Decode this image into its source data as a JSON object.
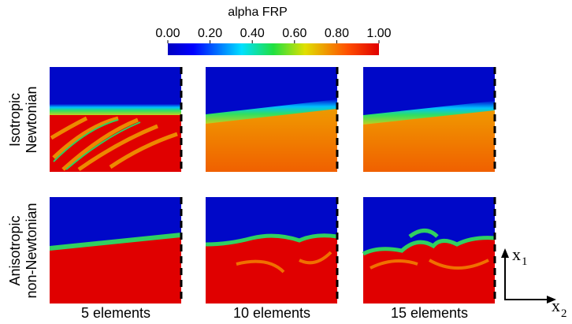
{
  "colorbar": {
    "title": "alpha FRP",
    "range": [
      0,
      1
    ],
    "ticks": [
      {
        "value": 0,
        "label": "0.00"
      },
      {
        "value": 0.2,
        "label": "0.20"
      },
      {
        "value": 0.4,
        "label": "0.40"
      },
      {
        "value": 0.6,
        "label": "0.60"
      },
      {
        "value": 0.8,
        "label": "0.80"
      },
      {
        "value": 1,
        "label": "1.00"
      }
    ]
  },
  "row_labels": [
    [
      "Isotropic",
      "Newtonian"
    ],
    [
      "Anisotropic",
      "non-Newtonian"
    ]
  ],
  "column_labels": [
    "5 elements",
    "10 elements",
    "15 elements"
  ],
  "axes": {
    "vertical": {
      "symbol": "x",
      "subscript": "1"
    },
    "horizontal": {
      "symbol": "x",
      "subscript": "2"
    }
  }
}
